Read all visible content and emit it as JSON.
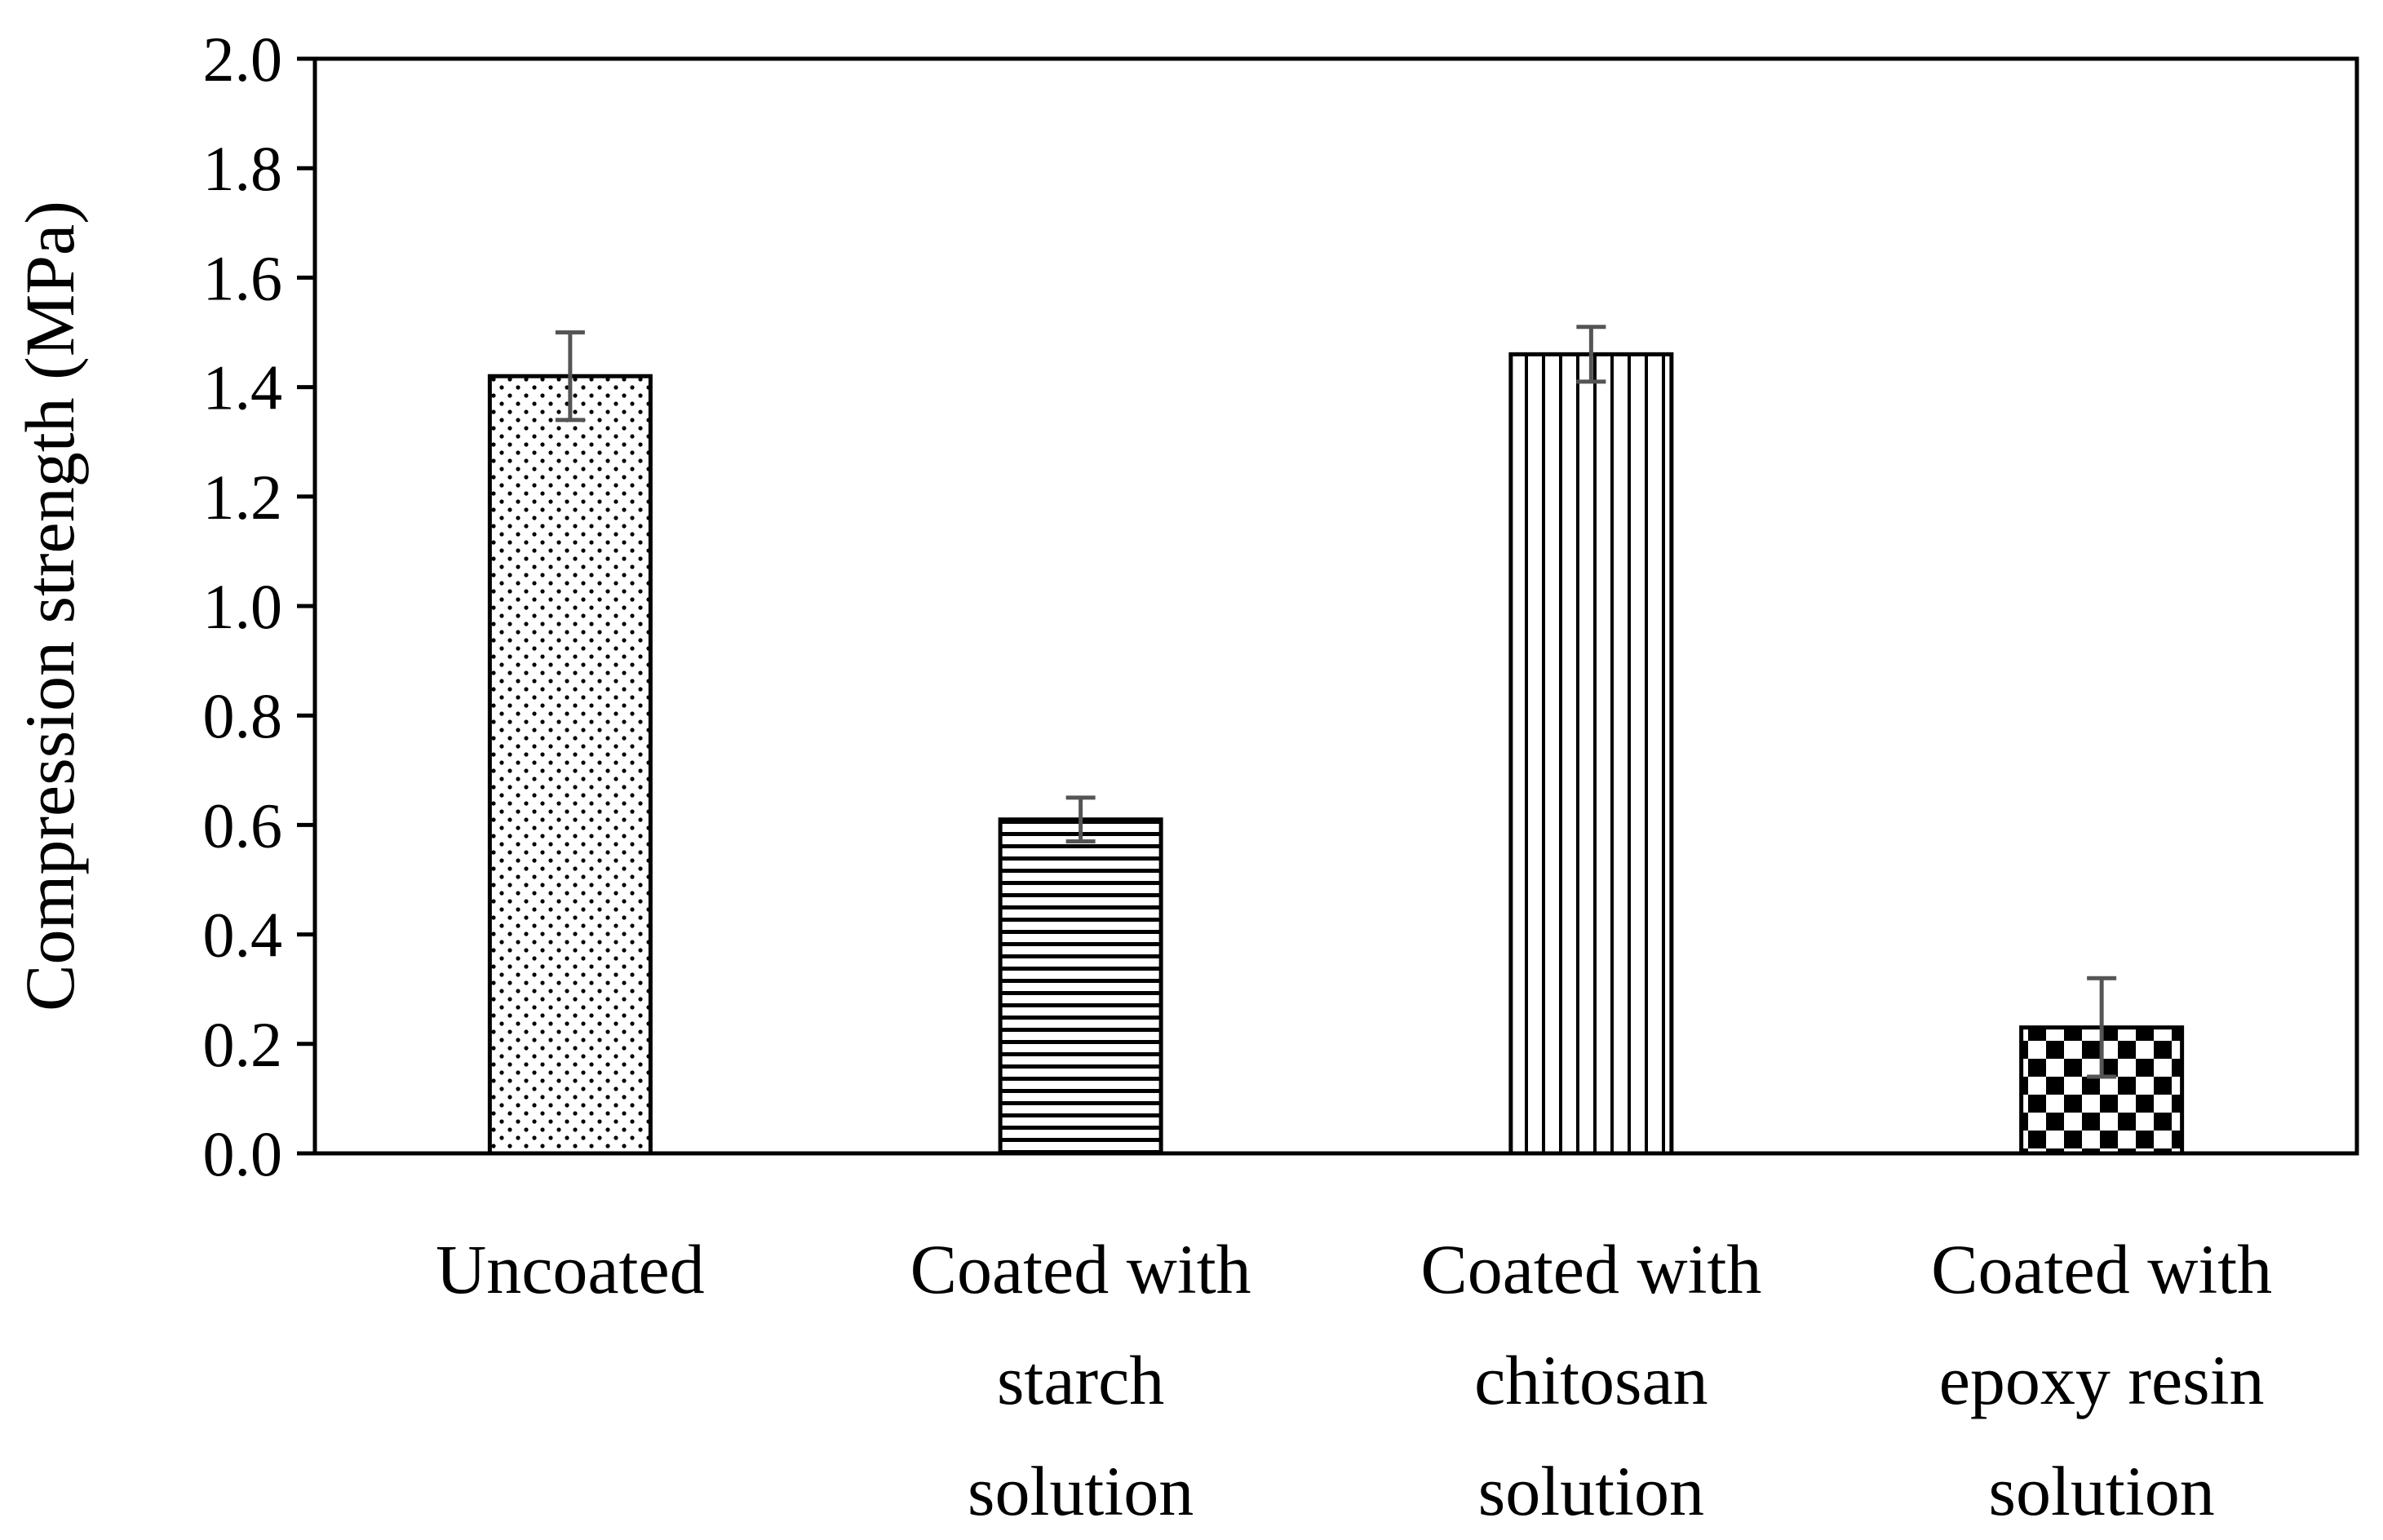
{
  "chart_data": {
    "type": "bar",
    "title": "",
    "xlabel": "",
    "ylabel": "Compression strength (MPa)",
    "ylim": [
      0,
      2.0
    ],
    "yticks": [
      "0.0",
      "0.2",
      "0.4",
      "0.6",
      "0.8",
      "1.0",
      "1.2",
      "1.4",
      "1.6",
      "1.8",
      "2.0"
    ],
    "grid": false,
    "categories": [
      [
        "Uncoated"
      ],
      [
        "Coated with",
        "starch",
        "solution"
      ],
      [
        "Coated with",
        "chitosan",
        "solution"
      ],
      [
        "Coated with",
        "epoxy resin",
        "solution"
      ]
    ],
    "values": [
      1.42,
      0.61,
      1.46,
      0.23
    ],
    "errors": [
      0.08,
      0.04,
      0.05,
      0.09
    ],
    "patterns": [
      "dots",
      "horizontal-lines",
      "vertical-lines",
      "checkerboard"
    ],
    "colors": {
      "bar_fill": "#ffffff",
      "pattern": "#000000",
      "error_bar": "#555555",
      "axis": "#000000"
    }
  }
}
